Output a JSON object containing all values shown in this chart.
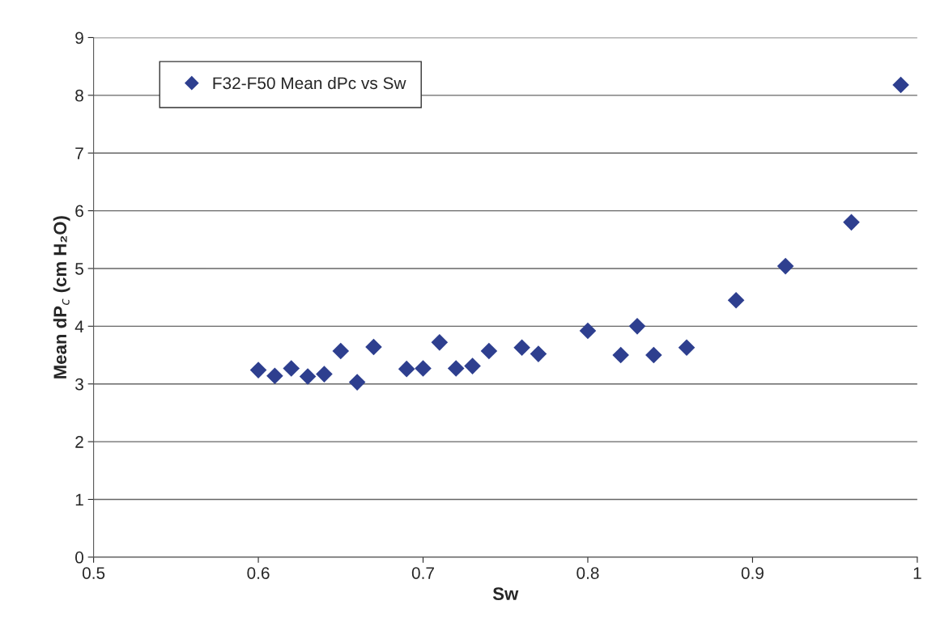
{
  "chart_data": {
    "type": "scatter",
    "xlabel": "Sw",
    "ylabel": "Mean dP$_{c}$ (cm H₂O)",
    "xlim": [
      0.5,
      1
    ],
    "xticks": [
      0.5,
      0.6,
      0.7,
      0.8,
      0.9,
      1
    ],
    "ylim": [
      0,
      9
    ],
    "yticks": [
      0,
      1,
      2,
      3,
      4,
      5,
      6,
      7,
      8,
      9
    ],
    "grid": "y",
    "legend": "top left",
    "marker": "diamond",
    "series": [
      {
        "name": "F32-F50 Mean dPc vs Sw",
        "color": "#2e3f8f",
        "x": [
          0.6,
          0.61,
          0.62,
          0.63,
          0.64,
          0.65,
          0.66,
          0.67,
          0.69,
          0.7,
          0.71,
          0.72,
          0.73,
          0.74,
          0.76,
          0.77,
          0.8,
          0.82,
          0.83,
          0.84,
          0.86,
          0.89,
          0.92,
          0.96,
          0.99
        ],
        "values": [
          3.24,
          3.14,
          3.27,
          3.13,
          3.17,
          3.57,
          3.03,
          3.64,
          3.26,
          3.27,
          3.72,
          3.27,
          3.31,
          3.57,
          3.63,
          3.52,
          3.92,
          3.5,
          4.0,
          3.5,
          3.63,
          4.45,
          5.04,
          5.8,
          8.18
        ]
      }
    ]
  }
}
